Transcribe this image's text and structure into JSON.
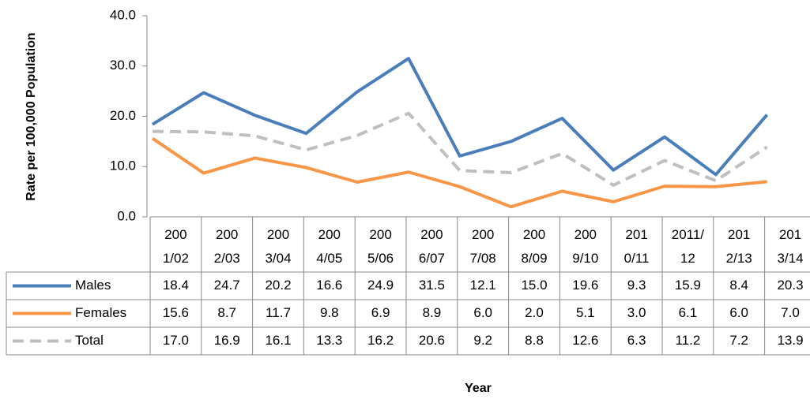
{
  "chart_data": {
    "type": "line",
    "y_label": "Rate per 100,000 Population",
    "x_label": "Year",
    "categories": [
      "2001/02",
      "2002/03",
      "2003/04",
      "2004/05",
      "2005/06",
      "2006/07",
      "2007/08",
      "2008/09",
      "2009/10",
      "2010/11",
      "2011/12",
      "2012/13",
      "2013/14"
    ],
    "series": [
      {
        "name": "Males",
        "color": "#4a7ebb",
        "dash": false,
        "values": [
          18.4,
          24.7,
          20.2,
          16.6,
          24.9,
          31.5,
          12.1,
          15.0,
          19.6,
          9.3,
          15.9,
          8.4,
          20.3
        ],
        "value_labels": [
          "18.4",
          "24.7",
          "20.2",
          "16.6",
          "24.9",
          "31.5",
          "12.1",
          "15.0",
          "19.6",
          "9.3",
          "15.9",
          "8.4",
          "20.3"
        ]
      },
      {
        "name": "Females",
        "color": "#f79646",
        "dash": false,
        "values": [
          15.6,
          8.7,
          11.7,
          9.8,
          6.9,
          8.9,
          6.0,
          2.0,
          5.1,
          3.0,
          6.1,
          6.0,
          7.0
        ],
        "value_labels": [
          "15.6",
          "8.7",
          "11.7",
          "9.8",
          "6.9",
          "8.9",
          "6.0",
          "2.0",
          "5.1",
          "3.0",
          "6.1",
          "6.0",
          "7.0"
        ]
      },
      {
        "name": "Total",
        "color": "#bfbfbf",
        "dash": true,
        "values": [
          17.0,
          16.9,
          16.1,
          13.3,
          16.2,
          20.6,
          9.2,
          8.8,
          12.6,
          6.3,
          11.2,
          7.2,
          13.9
        ],
        "value_labels": [
          "17.0",
          "16.9",
          "16.1",
          "13.3",
          "16.2",
          "20.6",
          "9.2",
          "8.8",
          "12.6",
          "6.3",
          "11.2",
          "7.2",
          "13.9"
        ]
      }
    ],
    "ylim": [
      0,
      40
    ],
    "yticks": [
      {
        "value": 0,
        "label": "0.0"
      },
      {
        "value": 10,
        "label": "10.0"
      },
      {
        "value": 20,
        "label": "20.0"
      },
      {
        "value": 30,
        "label": "30.0"
      },
      {
        "value": 40,
        "label": "40.0"
      }
    ],
    "grid": false
  }
}
